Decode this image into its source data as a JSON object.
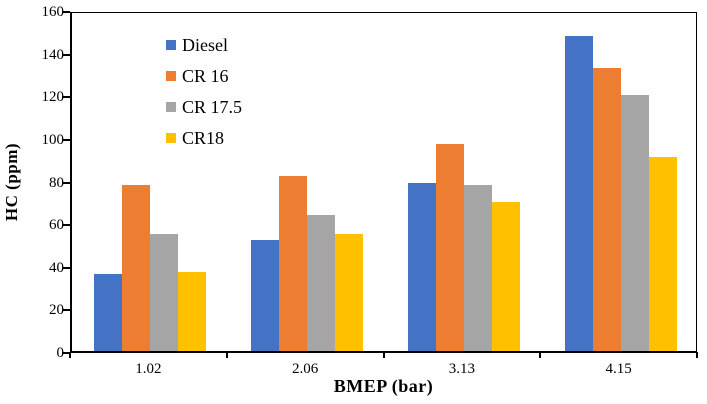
{
  "chart_data": {
    "type": "bar",
    "title": "",
    "xlabel": "BMEP (bar)",
    "ylabel": "HC (ppm)",
    "categories": [
      "1.02",
      "2.06",
      "3.13",
      "4.15"
    ],
    "series": [
      {
        "name": "Diesel",
        "color": "#4472C4",
        "values": [
          36,
          52,
          79,
          148
        ]
      },
      {
        "name": "CR 16",
        "color": "#ED7D31",
        "values": [
          78,
          82,
          97,
          133
        ]
      },
      {
        "name": "CR 17.5",
        "color": "#A5A5A5",
        "values": [
          55,
          64,
          78,
          120
        ]
      },
      {
        "name": "CR18",
        "color": "#FFC000",
        "values": [
          37,
          55,
          70,
          91
        ]
      }
    ],
    "ylim": [
      0,
      160
    ],
    "yticks": [
      0,
      20,
      40,
      60,
      80,
      100,
      120,
      140,
      160
    ],
    "grid": false,
    "legend_position": "top-left-inside",
    "axis_color": "#000000",
    "background_color": "#ffffff"
  }
}
